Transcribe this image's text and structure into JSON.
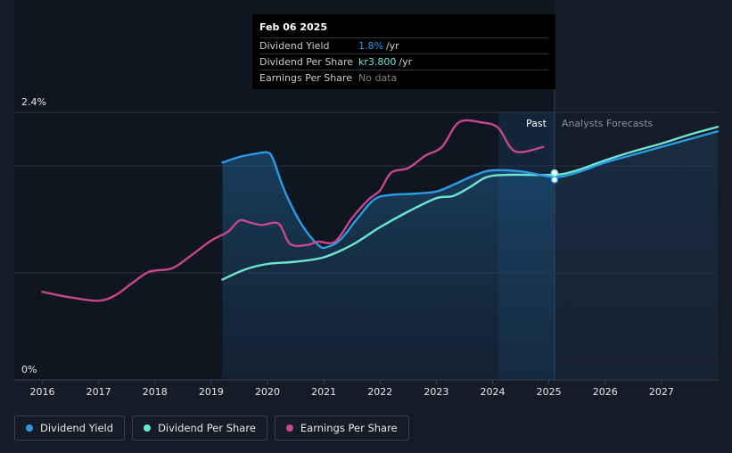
{
  "tooltip": {
    "date": "Feb 06 2025",
    "rows": [
      {
        "name": "Dividend Yield",
        "value": "1.8%",
        "unit": "/yr",
        "color": "#2b9be6"
      },
      {
        "name": "Dividend Per Share",
        "value": "kr3.800",
        "unit": "/yr",
        "color": "#6ee7d2"
      },
      {
        "name": "Earnings Per Share",
        "value": "No data",
        "unit": "",
        "color": "#7b828d"
      }
    ]
  },
  "labels": {
    "past": "Past",
    "forecast": "Analysts Forecasts"
  },
  "legend": [
    {
      "label": "Dividend Yield",
      "color": "#2b9be6"
    },
    {
      "label": "Dividend Per Share",
      "color": "#6ee7d2"
    },
    {
      "label": "Earnings Per Share",
      "color": "#c7468f"
    }
  ],
  "chart_data": {
    "type": "line",
    "x_ticks": [
      "2016",
      "2017",
      "2018",
      "2019",
      "2020",
      "2021",
      "2022",
      "2023",
      "2024",
      "2025",
      "2026",
      "2027"
    ],
    "y_tick_labels": [
      "0%",
      "2.4%"
    ],
    "ylim": [
      0,
      2.4
    ],
    "xlim": [
      2015.5,
      2028.0
    ],
    "past_forecast_boundary": 2025.1,
    "highlight_start": 2024.1,
    "series": [
      {
        "name": "Dividend Yield",
        "unit": "%",
        "color": "#2b9be6",
        "x": [
          2019.2,
          2019.5,
          2019.8,
          2020.0,
          2020.1,
          2020.3,
          2020.6,
          2020.9,
          2021.05,
          2021.3,
          2021.6,
          2021.9,
          2022.2,
          2022.6,
          2023.0,
          2023.3,
          2023.7,
          2024.0,
          2024.5,
          2025.1,
          2025.5,
          2026.0,
          2026.5,
          2027.0,
          2027.5,
          2028.0
        ],
        "y": [
          1.95,
          2.0,
          2.03,
          2.04,
          1.98,
          1.7,
          1.4,
          1.21,
          1.19,
          1.26,
          1.45,
          1.62,
          1.66,
          1.67,
          1.69,
          1.75,
          1.84,
          1.88,
          1.87,
          1.82,
          1.86,
          1.95,
          2.02,
          2.09,
          2.16,
          2.23
        ]
      },
      {
        "name": "Dividend Per Share",
        "unit": "%",
        "color": "#6ee7d2",
        "x": [
          2019.2,
          2019.6,
          2020.0,
          2020.5,
          2021.0,
          2021.5,
          2022.0,
          2022.5,
          2023.0,
          2023.3,
          2023.6,
          2023.9,
          2024.3,
          2025.1,
          2025.5,
          2026.0,
          2026.5,
          2027.0,
          2027.5,
          2028.0
        ],
        "y": [
          0.9,
          0.99,
          1.04,
          1.06,
          1.1,
          1.21,
          1.37,
          1.51,
          1.63,
          1.65,
          1.73,
          1.82,
          1.84,
          1.84,
          1.88,
          1.97,
          2.05,
          2.12,
          2.2,
          2.27
        ]
      },
      {
        "name": "Earnings Per Share",
        "unit": "%",
        "color": "#c7468f",
        "x": [
          2016.0,
          2016.5,
          2017.0,
          2017.3,
          2017.6,
          2017.9,
          2018.3,
          2018.6,
          2019.0,
          2019.3,
          2019.5,
          2019.7,
          2019.9,
          2020.2,
          2020.4,
          2020.7,
          2020.9,
          2021.2,
          2021.5,
          2021.8,
          2022.0,
          2022.2,
          2022.5,
          2022.8,
          2023.1,
          2023.4,
          2023.8,
          2024.1,
          2024.4,
          2024.9
        ],
        "y": [
          0.79,
          0.74,
          0.71,
          0.76,
          0.87,
          0.97,
          1.0,
          1.1,
          1.25,
          1.33,
          1.43,
          1.41,
          1.39,
          1.4,
          1.22,
          1.21,
          1.24,
          1.24,
          1.45,
          1.62,
          1.7,
          1.86,
          1.9,
          2.01,
          2.09,
          2.31,
          2.31,
          2.26,
          2.05,
          2.09
        ]
      }
    ]
  }
}
